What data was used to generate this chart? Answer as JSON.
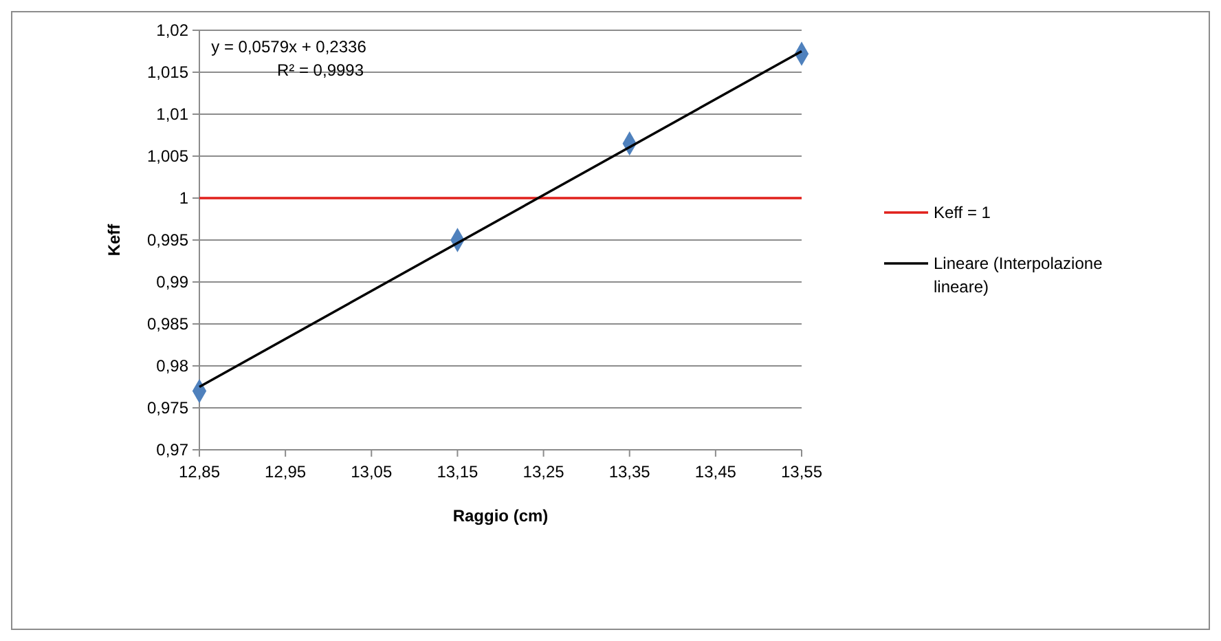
{
  "chart_data": {
    "type": "scatter",
    "xlabel": "Raggio (cm)",
    "ylabel": "Keff",
    "xlim": [
      12.85,
      13.55
    ],
    "ylim": [
      0.97,
      1.02
    ],
    "xticks": [
      {
        "value": 12.85,
        "label": "12,85"
      },
      {
        "value": 12.95,
        "label": "12,95"
      },
      {
        "value": 13.05,
        "label": "13,05"
      },
      {
        "value": 13.15,
        "label": "13,15"
      },
      {
        "value": 13.25,
        "label": "13,25"
      },
      {
        "value": 13.35,
        "label": "13,35"
      },
      {
        "value": 13.45,
        "label": "13,45"
      },
      {
        "value": 13.55,
        "label": "13,55"
      }
    ],
    "yticks": [
      {
        "value": 0.97,
        "label": "0,97"
      },
      {
        "value": 0.975,
        "label": "0,975"
      },
      {
        "value": 0.98,
        "label": "0,98"
      },
      {
        "value": 0.985,
        "label": "0,985"
      },
      {
        "value": 0.99,
        "label": "0,99"
      },
      {
        "value": 0.995,
        "label": "0,995"
      },
      {
        "value": 1,
        "label": "1"
      },
      {
        "value": 1.005,
        "label": "1,005"
      },
      {
        "value": 1.01,
        "label": "1,01"
      },
      {
        "value": 1.015,
        "label": "1,015"
      },
      {
        "value": 1.02,
        "label": "1,02"
      }
    ],
    "x": [
      12.85,
      13.15,
      13.35,
      13.55
    ],
    "series": [
      {
        "type": "scatter",
        "color": "#4f81bd",
        "marker": "diamond",
        "values": [
          0.977,
          0.995,
          1.0065,
          1.0172
        ]
      },
      {
        "type": "line",
        "name": "Keff = 1",
        "color": "#e0201b",
        "marker": "none",
        "values": [
          1,
          1,
          1,
          1
        ]
      },
      {
        "type": "line",
        "name": "Lineare (Interpolazione lineare)",
        "color": "#000000",
        "marker": "none",
        "x": [
          12.85,
          13.55
        ],
        "values": [
          0.9775,
          1.0175
        ]
      }
    ],
    "annotations": [
      "y = 0,0579x + 0,2336",
      "R² = 0,9993"
    ],
    "grid": "y",
    "legend": "right"
  }
}
